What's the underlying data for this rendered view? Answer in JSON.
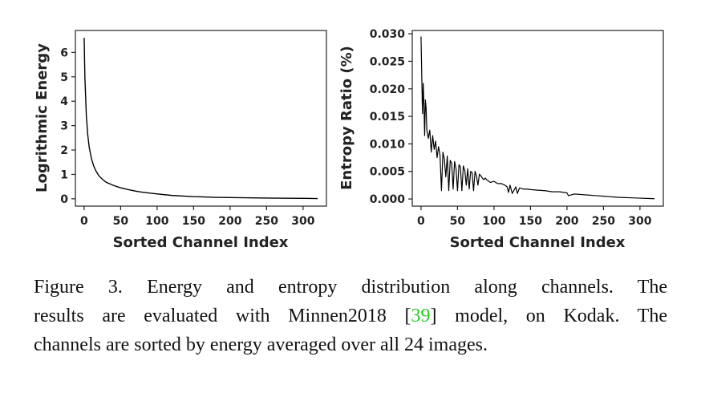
{
  "chart_data": [
    {
      "type": "line",
      "xlabel": "Sorted Channel Index",
      "ylabel": "Logrithmic Energy",
      "xlim": [
        -12,
        332
      ],
      "ylim": [
        -0.3,
        6.9
      ],
      "xticks": [
        0,
        50,
        100,
        150,
        200,
        250,
        300
      ],
      "yticks": [
        0,
        1,
        2,
        3,
        4,
        5,
        6
      ],
      "ytick_labels": [
        "0",
        "1",
        "2",
        "3",
        "4",
        "5",
        "6"
      ],
      "grid": false,
      "x": [
        0,
        1,
        2,
        3,
        5,
        7,
        10,
        13,
        16,
        20,
        25,
        30,
        40,
        50,
        60,
        70,
        80,
        100,
        120,
        150,
        180,
        200,
        250,
        300,
        320
      ],
      "y": [
        6.6,
        5.0,
        4.2,
        3.4,
        2.6,
        2.1,
        1.65,
        1.35,
        1.15,
        0.95,
        0.8,
        0.68,
        0.55,
        0.45,
        0.38,
        0.32,
        0.27,
        0.2,
        0.14,
        0.09,
        0.06,
        0.05,
        0.03,
        0.02,
        0.01
      ]
    },
    {
      "type": "line",
      "xlabel": "Sorted Channel Index",
      "ylabel": "Entropy Ratio (%)",
      "xlim": [
        -12,
        332
      ],
      "ylim": [
        -0.0013,
        0.0306
      ],
      "xticks": [
        0,
        50,
        100,
        150,
        200,
        250,
        300
      ],
      "yticks": [
        0,
        0.005,
        0.01,
        0.015,
        0.02,
        0.025,
        0.03
      ],
      "ytick_labels": [
        "0.000",
        "0.005",
        "0.010",
        "0.015",
        "0.020",
        "0.025",
        "0.030"
      ],
      "grid": false,
      "x": [
        0,
        1,
        2,
        3,
        4,
        5,
        6,
        7,
        8,
        10,
        12,
        14,
        16,
        18,
        20,
        22,
        24,
        26,
        28,
        30,
        32,
        34,
        36,
        38,
        40,
        42,
        44,
        46,
        48,
        50,
        52,
        54,
        56,
        58,
        60,
        62,
        64,
        66,
        68,
        70,
        72,
        74,
        76,
        78,
        80,
        82,
        84,
        86,
        88,
        90,
        95,
        100,
        105,
        110,
        115,
        118,
        120,
        122,
        125,
        130,
        132,
        135,
        140,
        145,
        150,
        160,
        170,
        180,
        190,
        200,
        202,
        210,
        220,
        230,
        240,
        250,
        260,
        270,
        280,
        290,
        300,
        310,
        320
      ],
      "y": [
        0.0295,
        0.0225,
        0.0155,
        0.021,
        0.017,
        0.0115,
        0.018,
        0.0165,
        0.0125,
        0.011,
        0.0125,
        0.0085,
        0.0115,
        0.009,
        0.0105,
        0.0075,
        0.0095,
        0.008,
        0.0015,
        0.0085,
        0.0072,
        0.004,
        0.0078,
        0.0015,
        0.007,
        0.0065,
        0.0018,
        0.0068,
        0.0055,
        0.0015,
        0.0062,
        0.0058,
        0.0015,
        0.006,
        0.0052,
        0.0025,
        0.0055,
        0.0018,
        0.005,
        0.0048,
        0.0015,
        0.005,
        0.0042,
        0.0025,
        0.0045,
        0.0042,
        0.0038,
        0.0035,
        0.0038,
        0.0035,
        0.003,
        0.0032,
        0.0028,
        0.0028,
        0.0025,
        0.0022,
        0.0012,
        0.0025,
        0.001,
        0.0022,
        0.001,
        0.002,
        0.0018,
        0.0018,
        0.0017,
        0.0016,
        0.0015,
        0.0013,
        0.0013,
        0.0011,
        0.0006,
        0.0009,
        0.0008,
        0.0007,
        0.0006,
        0.0005,
        0.0004,
        0.0003,
        0.00025,
        0.0002,
        0.00015,
        0.0001,
        5e-05
      ]
    }
  ],
  "caption": {
    "line1_prefix": "Figure 3.  Energy and entropy distribution along channels.  The",
    "line2_prefix": "results are evaluated with Minnen2018 [",
    "ref": "39",
    "line2_suffix": "] model, on Kodak. The",
    "line3": "channels are sorted by energy averaged over all 24 images."
  },
  "colors": {
    "line": "#000000",
    "reference_link": "#22cc22"
  }
}
